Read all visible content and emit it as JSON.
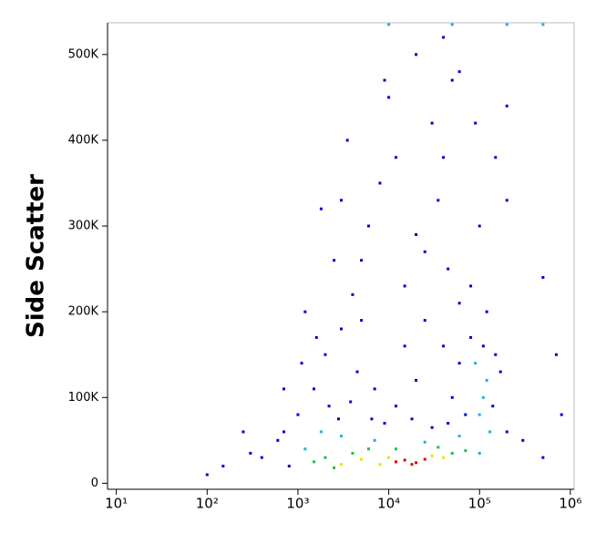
{
  "chart_data": {
    "type": "scatter",
    "y_label": "Side Scatter",
    "x_log": true,
    "xlim": [
      8,
      1100000
    ],
    "xticks": [
      {
        "value": 10,
        "label": "10¹"
      },
      {
        "value": 100,
        "label": "10²"
      },
      {
        "value": 1000,
        "label": "10³"
      },
      {
        "value": 10000,
        "label": "10⁴"
      },
      {
        "value": 100000,
        "label": "10⁵"
      },
      {
        "value": 1000000,
        "label": "10⁶"
      }
    ],
    "ylim": [
      -7000,
      537000
    ],
    "yticks": [
      0,
      {
        "value": 100000,
        "label": "100K"
      },
      {
        "value": 200000,
        "label": "200K"
      },
      {
        "value": 300000,
        "label": "300K"
      },
      {
        "value": 400000,
        "label": "400K"
      },
      {
        "value": 500000,
        "label": "500K"
      }
    ],
    "x": [
      12000,
      15000,
      20000,
      25000,
      18000,
      5000,
      8000,
      30000,
      40000,
      10000,
      3000,
      2000,
      2500,
      4000,
      6000,
      50000,
      70000,
      1500,
      12000,
      35000,
      1200,
      3000,
      60000,
      100000,
      120000,
      90000,
      110000,
      130000,
      1800,
      7000,
      25000,
      100000,
      800,
      600,
      1000,
      1500,
      2000,
      3000,
      4000,
      5000,
      6000,
      8000,
      3500,
      10000,
      20000,
      40000,
      50000,
      30000,
      40000,
      35000,
      20000,
      45000,
      60000,
      25000,
      15000,
      80000,
      150000,
      120000,
      100000,
      90000,
      150000,
      200000,
      1200,
      2500,
      7000,
      12000,
      20000,
      50000,
      70000,
      200000,
      300000,
      500000,
      400,
      300,
      250,
      150,
      100,
      700,
      1800,
      4500,
      9000,
      30000,
      60000,
      15000,
      25000,
      5000,
      2200,
      1100,
      500000,
      700000,
      800000,
      200000,
      3000,
      12000,
      9000,
      60000,
      80000,
      40000,
      2800,
      3800,
      6500,
      18000,
      45000,
      110000,
      140000,
      170000,
      1600,
      700,
      10000,
      50000,
      200000,
      500000
    ],
    "values": [
      25000,
      27000,
      24000,
      28000,
      22000,
      28000,
      22000,
      32000,
      30000,
      30000,
      22000,
      30000,
      18000,
      35000,
      40000,
      35000,
      38000,
      25000,
      40000,
      42000,
      40000,
      55000,
      55000,
      80000,
      120000,
      140000,
      100000,
      60000,
      60000,
      50000,
      48000,
      35000,
      20000,
      50000,
      80000,
      110000,
      150000,
      180000,
      220000,
      260000,
      300000,
      350000,
      400000,
      450000,
      500000,
      520000,
      470000,
      420000,
      380000,
      330000,
      290000,
      250000,
      210000,
      190000,
      160000,
      170000,
      150000,
      200000,
      300000,
      420000,
      380000,
      330000,
      200000,
      260000,
      110000,
      90000,
      120000,
      100000,
      80000,
      60000,
      50000,
      30000,
      30000,
      35000,
      60000,
      20000,
      10000,
      110000,
      320000,
      130000,
      70000,
      65000,
      140000,
      230000,
      270000,
      190000,
      90000,
      140000,
      240000,
      150000,
      80000,
      440000,
      330000,
      380000,
      470000,
      480000,
      230000,
      160000,
      75000,
      95000,
      75000,
      75000,
      70000,
      160000,
      90000,
      130000,
      170000,
      60000,
      535000,
      535000,
      535000,
      535000
    ],
    "point_colors": [
      "#e00000",
      "#e00000",
      "#e00000",
      "#e00000",
      "#e00000",
      "#f0e000",
      "#f0e000",
      "#f0e000",
      "#f0e000",
      "#f0e000",
      "#f0e000",
      "#20c040",
      "#20c040",
      "#20c040",
      "#20c040",
      "#20c040",
      "#20c040",
      "#20c040",
      "#20c040",
      "#20c040",
      "#20b0e0",
      "#20b0e0",
      "#20b0e0",
      "#20b0e0",
      "#20b0e0",
      "#20b0e0",
      "#20b0e0",
      "#20b0e0",
      "#20b0e0",
      "#20b0e0",
      "#20b0e0",
      "#20b0e0",
      "#0000d0",
      "#0000d0",
      "#0000d0",
      "#0000d0",
      "#0000d0",
      "#0000d0",
      "#0000d0",
      "#0000d0",
      "#0000d0",
      "#0000d0",
      "#0000d0",
      "#0000d0",
      "#0000d0",
      "#0000d0",
      "#0000d0",
      "#0000d0",
      "#0000d0",
      "#0000d0",
      "#0000d0",
      "#0000d0",
      "#0000d0",
      "#0000d0",
      "#0000d0",
      "#0000d0",
      "#0000d0",
      "#0000d0",
      "#0000d0",
      "#0000d0",
      "#0000d0",
      "#0000d0",
      "#0000d0",
      "#0000d0",
      "#0000d0",
      "#0000d0",
      "#0000d0",
      "#0000d0",
      "#0000d0",
      "#0000d0",
      "#0000d0",
      "#0000d0",
      "#0000d0",
      "#0000d0",
      "#0000d0",
      "#0000d0",
      "#0000d0",
      "#0000d0",
      "#0000d0",
      "#0000d0",
      "#0000d0",
      "#0000d0",
      "#0000d0",
      "#0000d0",
      "#0000d0",
      "#0000d0",
      "#0000d0",
      "#0000d0",
      "#0000d0",
      "#0000d0",
      "#0000d0",
      "#0000d0",
      "#0000d0",
      "#0000d0",
      "#0000d0",
      "#0000d0",
      "#0000d0",
      "#0000d0",
      "#0000d0",
      "#0000d0",
      "#0000d0",
      "#0000d0",
      "#0000d0",
      "#0000d0",
      "#0000d0",
      "#0000d0",
      "#0000d0",
      "#0000d0",
      "#20b0e0",
      "#20b0e0",
      "#20b0e0",
      "#20b0e0"
    ]
  }
}
